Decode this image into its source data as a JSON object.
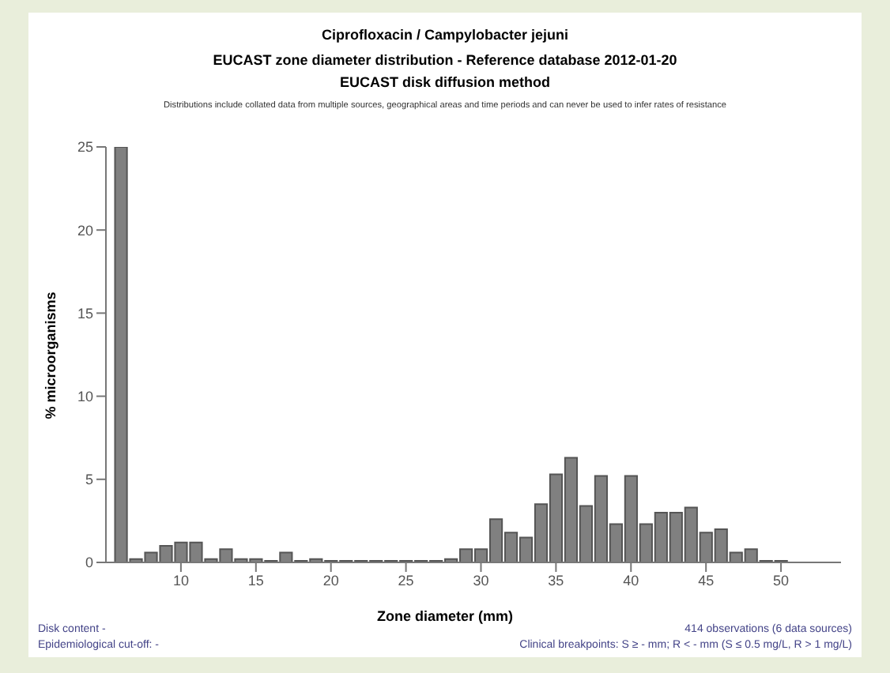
{
  "chart_data": {
    "type": "histogram",
    "title": "Ciprofloxacin / Campylobacter jejuni\nEUCAST zone diameter distribution - Reference database 2012-01-20",
    "subtitle": "EUCAST disk diffusion method",
    "annotations": [
      "Distributions include collated data from multiple sources, geographical areas and time periods and can never be used to infer rates of resistance",
      "Disk content -",
      "Epidemiological cut-off: -",
      "414 observations (6 data sources)",
      "Clinical breakpoints: S ≥ - mm; R < - mm (S ≤ 0.5 mg/L, R > 1 mg/L)"
    ],
    "xlabel": "Zone diameter (mm)",
    "ylabel": "% microorganisms",
    "bins": [
      5.5,
      6.5,
      7.5,
      8.5,
      9.5,
      10.5,
      11.5,
      12.5,
      13.5,
      14.5,
      15.5,
      16.5,
      17.5,
      18.5,
      19.5,
      20.5,
      21.5,
      22.5,
      23.5,
      24.5,
      25.5,
      26.5,
      27.5,
      28.5,
      29.5,
      30.5,
      31.5,
      32.5,
      33.5,
      34.5,
      35.5,
      36.5,
      37.5,
      38.5,
      39.5,
      40.5,
      41.5,
      42.5,
      43.5,
      44.5,
      45.5,
      46.5,
      47.5,
      48.5,
      49.5,
      50.5
    ],
    "values": [
      25,
      0.2,
      0.6,
      1.0,
      1.2,
      1.2,
      0.2,
      0.8,
      0.2,
      0.2,
      0.1,
      0.6,
      0.1,
      0.2,
      0.1,
      0.1,
      0.1,
      0.1,
      0.1,
      0.1,
      0.1,
      0.1,
      0.2,
      0.8,
      0.8,
      2.6,
      1.8,
      1.5,
      3.5,
      5.3,
      6.3,
      3.4,
      5.2,
      2.3,
      5.2,
      2.3,
      3.0,
      3.0,
      3.3,
      1.8,
      2.0,
      0.6,
      0.8,
      0.1,
      0.1
    ],
    "color": "#808080",
    "xlim": [
      5,
      54
    ],
    "xticks": [
      10,
      15,
      20,
      25,
      30,
      35,
      40,
      45,
      50
    ],
    "ylim": [
      0,
      25
    ],
    "yticks": [
      0,
      5,
      10,
      15,
      20,
      25
    ]
  }
}
